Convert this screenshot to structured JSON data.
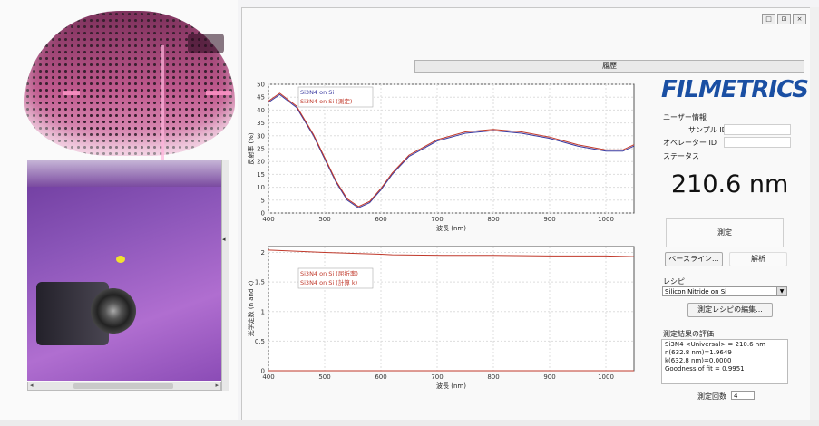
{
  "window": {
    "buttons": [
      "□",
      "⊡",
      "×"
    ]
  },
  "history_tab": "履歴",
  "top_chart": {
    "ylabel": "反射率 (%)",
    "xlabel": "波長 (nm)",
    "yticks": [
      "50",
      "45",
      "40",
      "35",
      "30",
      "25",
      "20",
      "15",
      "10",
      "5",
      "0"
    ],
    "xticks": [
      "400",
      "500",
      "600",
      "700",
      "800",
      "900",
      "1000"
    ],
    "legend": [
      "Si3N4 on Si",
      "Si3N4 on Si (測定)"
    ]
  },
  "bottom_chart": {
    "ylabel": "光学定数 (n and k)",
    "xlabel": "波長 (nm)",
    "yticks": [
      "2",
      "1.5",
      "1",
      "0.5",
      "0"
    ],
    "xticks": [
      "400",
      "500",
      "600",
      "700",
      "800",
      "900",
      "1000"
    ],
    "legend": [
      "Si3N4 on Si (屈折率)",
      "Si3N4 on Si (計算 k)"
    ]
  },
  "chart_data": [
    {
      "type": "line",
      "xlabel": "波長 (nm)",
      "ylabel": "反射率 (%)",
      "xlim": [
        400,
        1050
      ],
      "ylim": [
        0,
        50
      ],
      "series": [
        {
          "name": "Si3N4 on Si",
          "color": "#3a3aa0",
          "x": [
            400,
            420,
            450,
            480,
            500,
            520,
            540,
            560,
            580,
            600,
            620,
            650,
            700,
            750,
            800,
            850,
            900,
            950,
            1000,
            1030,
            1050
          ],
          "y": [
            43,
            46,
            41,
            30,
            21,
            12,
            5,
            2,
            4,
            9,
            15,
            22,
            28,
            31,
            32,
            31,
            29,
            26,
            24,
            24,
            26
          ]
        },
        {
          "name": "Si3N4 on Si (測定)",
          "color": "#c0392b",
          "x": [
            400,
            420,
            450,
            480,
            500,
            520,
            540,
            560,
            580,
            600,
            620,
            650,
            700,
            750,
            800,
            850,
            900,
            950,
            1000,
            1030,
            1050
          ],
          "y": [
            43.5,
            46.5,
            41.5,
            30.5,
            21.5,
            12.5,
            5.5,
            2.5,
            4.5,
            9.5,
            15.5,
            22.5,
            28.5,
            31.5,
            32.5,
            31.5,
            29.5,
            26.5,
            24.5,
            24.5,
            26.5
          ]
        }
      ]
    },
    {
      "type": "line",
      "xlabel": "波長 (nm)",
      "ylabel": "光学定数 (n and k)",
      "xlim": [
        400,
        1050
      ],
      "ylim": [
        0,
        2.1
      ],
      "series": [
        {
          "name": "Si3N4 on Si (屈折率)",
          "color": "#c0392b",
          "x": [
            400,
            500,
            600,
            620,
            710,
            800,
            900,
            1000,
            1050
          ],
          "y": [
            2.04,
            2.0,
            1.97,
            1.96,
            1.95,
            1.95,
            1.94,
            1.94,
            1.93
          ]
        },
        {
          "name": "Si3N4 on Si (計算 k)",
          "color": "#c0392b",
          "x": [
            400,
            1050
          ],
          "y": [
            0.0,
            0.0
          ]
        }
      ]
    }
  ],
  "sidebar": {
    "user_info": "ユーザー情報",
    "sample_id_label": "サンプル ID",
    "operator_id_label": "オペレーター ID",
    "status_label": "ステータス",
    "thickness": "210.6 nm",
    "measure_button": "測定",
    "baseline_button": "ベースライン...",
    "analyze_button": "解析",
    "recipe_label": "レシピ",
    "recipe_value": "Silicon Nitride on Si",
    "edit_recipe_button": "測定レシピの編集...",
    "results_label": "測定結果の評価",
    "results_lines": [
      "Si3N4 <Universal> = 210.6 nm",
      "n(632.8 nm)=1.9649",
      "k(632.8 nm)=0.0000",
      "Goodness of fit = 0.9951"
    ],
    "count_label": "測定回数",
    "count_value": "4"
  },
  "brand": {
    "logo": "FILMETRICS",
    "color": "#1a4fa3"
  }
}
